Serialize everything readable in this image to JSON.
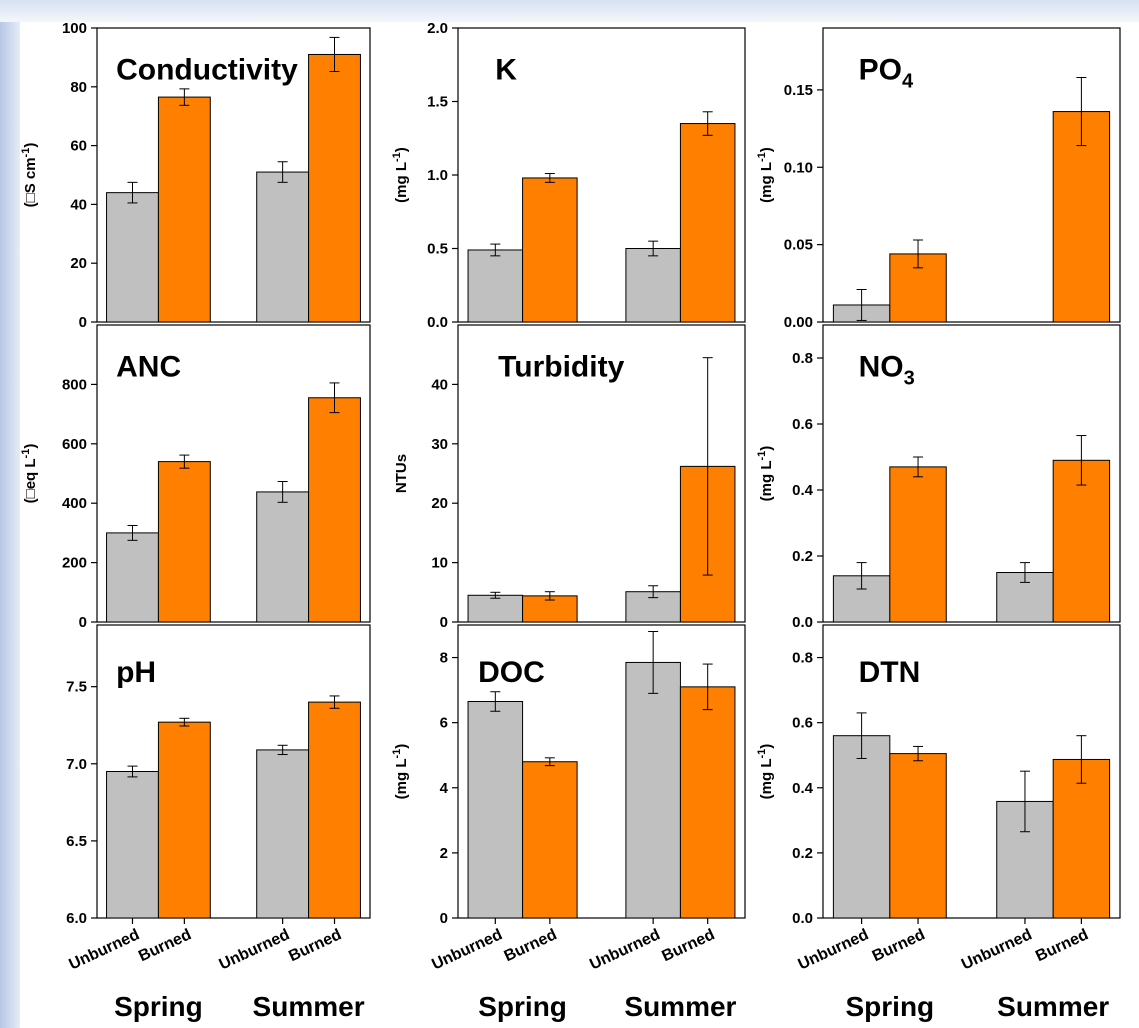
{
  "colors": {
    "unburned": "#c0c0c0",
    "burned": "#ff7f00",
    "axis": "#000000"
  },
  "categories": [
    "Unburned",
    "Burned",
    "Unburned",
    "Burned"
  ],
  "seasons": [
    "Spring",
    "Summer"
  ],
  "chart_data": [
    {
      "type": "bar",
      "title": "Conductivity",
      "ylabel": "(□S cm-1)",
      "ylim": [
        0,
        100
      ],
      "yticks": [
        "0",
        "20",
        "40",
        "60",
        "80",
        "100"
      ],
      "categories": [
        "Spring Unburned",
        "Spring Burned",
        "Summer Unburned",
        "Summer Burned"
      ],
      "values": [
        44,
        76.5,
        51,
        91
      ],
      "errors": [
        3.5,
        2.8,
        3.5,
        5.8
      ],
      "grid": false
    },
    {
      "type": "bar",
      "title": "K",
      "ylabel": "(mg L-1)",
      "ylim": [
        0,
        2.0
      ],
      "yticks": [
        "0.0",
        "0.5",
        "1.0",
        "1.5",
        "2.0"
      ],
      "categories": [
        "Spring Unburned",
        "Spring Burned",
        "Summer Unburned",
        "Summer Burned"
      ],
      "values": [
        0.49,
        0.98,
        0.5,
        1.35
      ],
      "errors": [
        0.04,
        0.03,
        0.05,
        0.08
      ],
      "grid": false
    },
    {
      "type": "bar",
      "title": "PO4",
      "ylabel": "(mg L-1)",
      "ylim": [
        0,
        0.19
      ],
      "yticks": [
        "0.00",
        "0.05",
        "0.10",
        "0.15"
      ],
      "categories": [
        "Spring Unburned",
        "Spring Burned",
        "Summer Unburned",
        "Summer Burned"
      ],
      "values": [
        0.011,
        0.044,
        0,
        0.136
      ],
      "errors": [
        0.01,
        0.009,
        0,
        0.022
      ],
      "grid": false
    },
    {
      "type": "bar",
      "title": "ANC",
      "ylabel": "(□eq L-1)",
      "ylim": [
        0,
        1000
      ],
      "yticks": [
        "0",
        "200",
        "400",
        "600",
        "800"
      ],
      "categories": [
        "Spring Unburned",
        "Spring Burned",
        "Summer Unburned",
        "Summer Burned"
      ],
      "values": [
        300,
        540,
        438,
        755
      ],
      "errors": [
        25,
        22,
        35,
        50
      ],
      "grid": false
    },
    {
      "type": "bar",
      "title": "Turbidity",
      "ylabel": "NTUs",
      "ylim": [
        0,
        50
      ],
      "yticks": [
        "0",
        "10",
        "20",
        "30",
        "40"
      ],
      "categories": [
        "Spring Unburned",
        "Spring Burned",
        "Summer Unburned",
        "Summer Burned"
      ],
      "values": [
        4.5,
        4.4,
        5.1,
        26.2
      ],
      "errors": [
        0.5,
        0.7,
        1.0,
        18.3
      ],
      "grid": false
    },
    {
      "type": "bar",
      "title": "NO3",
      "ylabel": "(mg L-1)",
      "ylim": [
        0,
        0.9
      ],
      "yticks": [
        "0.0",
        "0.2",
        "0.4",
        "0.6",
        "0.8"
      ],
      "categories": [
        "Spring Unburned",
        "Spring Burned",
        "Summer Unburned",
        "Summer Burned"
      ],
      "values": [
        0.14,
        0.47,
        0.15,
        0.49
      ],
      "errors": [
        0.04,
        0.03,
        0.03,
        0.075
      ],
      "grid": false
    },
    {
      "type": "bar",
      "title": "pH",
      "ylabel": "",
      "ylim": [
        6.0,
        7.9
      ],
      "yticks": [
        "6.0",
        "6.5",
        "7.0",
        "7.5"
      ],
      "categories": [
        "Spring Unburned",
        "Spring Burned",
        "Summer Unburned",
        "Summer Burned"
      ],
      "values": [
        6.95,
        7.27,
        7.09,
        7.4
      ],
      "errors": [
        0.035,
        0.025,
        0.03,
        0.04
      ],
      "grid": false
    },
    {
      "type": "bar",
      "title": "DOC",
      "ylabel": "(mg L-1)",
      "ylim": [
        0,
        9
      ],
      "yticks": [
        "0",
        "2",
        "4",
        "6",
        "8"
      ],
      "categories": [
        "Spring Unburned",
        "Spring Burned",
        "Summer Unburned",
        "Summer Burned"
      ],
      "values": [
        6.65,
        4.8,
        7.85,
        7.1
      ],
      "errors": [
        0.3,
        0.12,
        0.95,
        0.7
      ],
      "grid": false
    },
    {
      "type": "bar",
      "title": "DTN",
      "ylabel": "(mg L-1)",
      "ylim": [
        0,
        0.9
      ],
      "yticks": [
        "0.0",
        "0.2",
        "0.4",
        "0.6",
        "0.8"
      ],
      "categories": [
        "Spring Unburned",
        "Spring Burned",
        "Summer Unburned",
        "Summer Burned"
      ],
      "values": [
        0.56,
        0.505,
        0.358,
        0.487
      ],
      "errors": [
        0.07,
        0.022,
        0.093,
        0.073
      ],
      "grid": false
    }
  ]
}
